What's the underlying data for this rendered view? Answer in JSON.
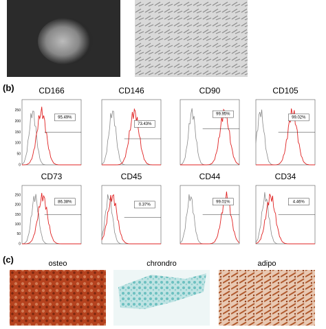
{
  "panel_b": {
    "label": "(b)",
    "yticks": [
      "0",
      "50",
      "100",
      "150",
      "200",
      "250"
    ],
    "plots": [
      {
        "title": "CD166",
        "percent": "95.49%"
      },
      {
        "title": "CD146",
        "percent": "73.43%"
      },
      {
        "title": "CD90",
        "percent": "99.95%"
      },
      {
        "title": "CD105",
        "percent": "99.02%"
      },
      {
        "title": "CD73",
        "percent": "86.38%"
      },
      {
        "title": "CD45",
        "percent": "0.37%"
      },
      {
        "title": "CD44",
        "percent": "99.01%"
      },
      {
        "title": "CD34",
        "percent": "4.46%"
      }
    ]
  },
  "panel_c": {
    "label": "(c)",
    "images": [
      {
        "caption": "osteo"
      },
      {
        "caption": "chrondro"
      },
      {
        "caption": "adipo"
      }
    ]
  }
}
